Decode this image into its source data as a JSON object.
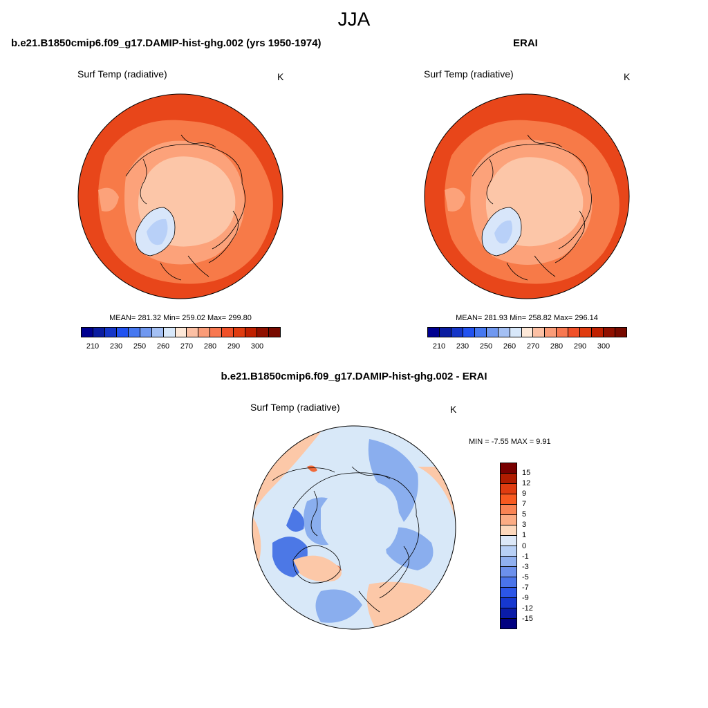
{
  "season": "JJA",
  "panels": {
    "model": {
      "title": "b.e21.B1850cmip6.f09_g17.DAMIP-hist-ghg.002 (yrs 1950-1974)",
      "variable": "Surf Temp (radiative)",
      "units": "K",
      "mean_label": "MEAN= 281.32  Min= 259.02  Max= 299.80"
    },
    "obs": {
      "title": "ERAI",
      "variable": "Surf Temp (radiative)",
      "units": "K",
      "mean_label": "MEAN= 281.93  Min= 258.82  Max= 296.14"
    },
    "diff": {
      "title": "b.e21.B1850cmip6.f09_g17.DAMIP-hist-ghg.002 - ERAI",
      "variable": "Surf Temp (radiative)",
      "units": "K",
      "minmax_label": "MIN =  -7.55 MAX =   9.91"
    }
  },
  "colorbar_abs": {
    "colors": [
      "#000090",
      "#0a1ca0",
      "#1536c8",
      "#2152f0",
      "#4678f0",
      "#7098f0",
      "#a4c0f4",
      "#d8e8fa",
      "#fde8d8",
      "#fcc0a4",
      "#fa9c78",
      "#f87850",
      "#f05028",
      "#e03c10",
      "#c02000",
      "#901000",
      "#780a00"
    ],
    "tick_labels": [
      "210",
      "230",
      "250",
      "260",
      "270",
      "280",
      "290",
      "300"
    ]
  },
  "colorbar_diff": {
    "colors": [
      "#780000",
      "#b01c00",
      "#e03c10",
      "#f85a20",
      "#fa8454",
      "#fcac84",
      "#fdd8bc",
      "#dce8f8",
      "#b8d0f6",
      "#90b0f0",
      "#6c90ec",
      "#4a74ea",
      "#2c56e8",
      "#1638d0",
      "#0a1ca8",
      "#000080"
    ],
    "tick_labels": [
      "15",
      "12",
      "9",
      "7",
      "5",
      "3",
      "1",
      "0",
      "-1",
      "-3",
      "-5",
      "-7",
      "-9",
      "-12",
      "-15"
    ]
  },
  "map_colors": {
    "warm_outer": "#e8461a",
    "warm_mid": "#f77a48",
    "warm_inner": "#fca27a",
    "cold_core": "#fcc6a8",
    "ice": "#d8e6fa",
    "ice_cold": "#b8d0f8",
    "diff_bg": "#d8e8f8",
    "diff_blue": "#8aaeee",
    "diff_blue_dark": "#4c78e6",
    "diff_warm": "#fcc8a8",
    "diff_red": "#f06a3a"
  }
}
